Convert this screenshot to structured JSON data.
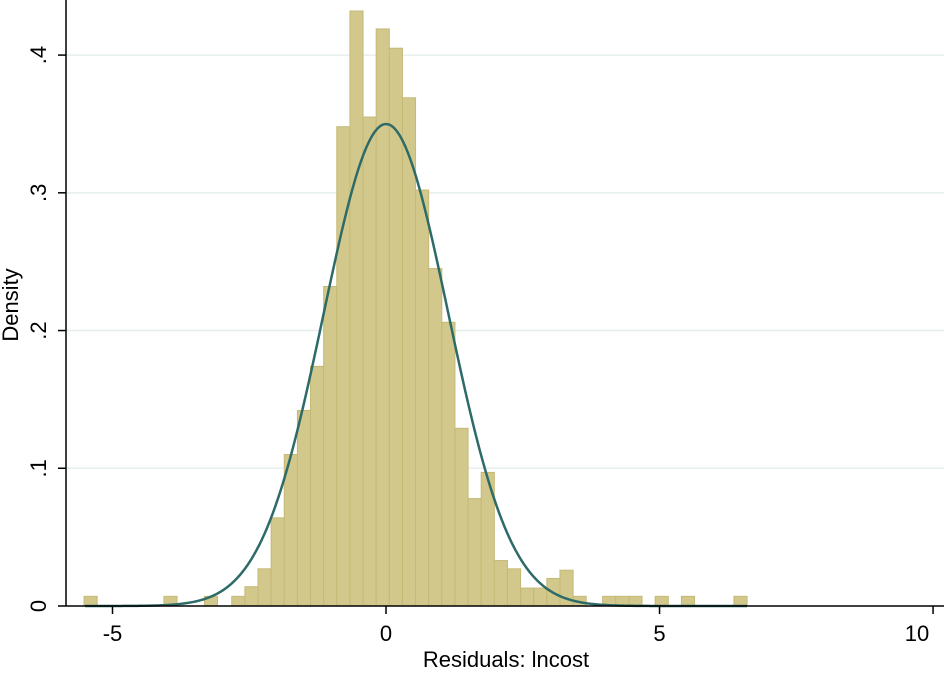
{
  "chart_data": {
    "type": "bar",
    "xlabel": "Residuals:  lncost",
    "ylabel": "Density",
    "xlim": [
      -5.85,
      10.2
    ],
    "ylim": [
      0,
      0.44
    ],
    "xticks": [
      {
        "value": -5,
        "label": "-5"
      },
      {
        "value": 0,
        "label": "0"
      },
      {
        "value": 5,
        "label": "5"
      },
      {
        "value": 10,
        "label": "10"
      }
    ],
    "yticks": [
      {
        "value": 0,
        "label": "0"
      },
      {
        "value": 0.1,
        "label": ".1"
      },
      {
        "value": 0.2,
        "label": ".2"
      },
      {
        "value": 0.3,
        "label": ".3"
      },
      {
        "value": 0.4,
        "label": ".4"
      }
    ],
    "grid": {
      "y": true,
      "x": false
    },
    "legend": "none",
    "colors": {
      "bars": "#d2c88c",
      "bar_edge": "#c5b976",
      "curve": "#2e6b68",
      "grid": "#e6eeee",
      "axis": "#000000"
    },
    "bin_width": 0.24,
    "histogram": {
      "name": "Density",
      "bins": [
        {
          "x0": -5.52,
          "x1": -5.28,
          "density": 0.007
        },
        {
          "x0": -4.06,
          "x1": -3.82,
          "density": 0.007
        },
        {
          "x0": -3.32,
          "x1": -3.08,
          "density": 0.007
        },
        {
          "x0": -2.82,
          "x1": -2.58,
          "density": 0.007
        },
        {
          "x0": -2.58,
          "x1": -2.34,
          "density": 0.014
        },
        {
          "x0": -2.34,
          "x1": -2.1,
          "density": 0.027
        },
        {
          "x0": -2.1,
          "x1": -1.86,
          "density": 0.064
        },
        {
          "x0": -1.86,
          "x1": -1.62,
          "density": 0.11
        },
        {
          "x0": -1.62,
          "x1": -1.38,
          "density": 0.142
        },
        {
          "x0": -1.38,
          "x1": -1.14,
          "density": 0.174
        },
        {
          "x0": -1.14,
          "x1": -0.9,
          "density": 0.232
        },
        {
          "x0": -0.9,
          "x1": -0.66,
          "density": 0.348
        },
        {
          "x0": -0.66,
          "x1": -0.42,
          "density": 0.432
        },
        {
          "x0": -0.42,
          "x1": -0.18,
          "density": 0.355
        },
        {
          "x0": -0.18,
          "x1": 0.06,
          "density": 0.419
        },
        {
          "x0": 0.06,
          "x1": 0.3,
          "density": 0.405
        },
        {
          "x0": 0.3,
          "x1": 0.54,
          "density": 0.369
        },
        {
          "x0": 0.54,
          "x1": 0.78,
          "density": 0.302
        },
        {
          "x0": 0.78,
          "x1": 1.02,
          "density": 0.245
        },
        {
          "x0": 1.02,
          "x1": 1.26,
          "density": 0.206
        },
        {
          "x0": 1.26,
          "x1": 1.5,
          "density": 0.129
        },
        {
          "x0": 1.5,
          "x1": 1.74,
          "density": 0.078
        },
        {
          "x0": 1.74,
          "x1": 1.98,
          "density": 0.097
        },
        {
          "x0": 1.98,
          "x1": 2.22,
          "density": 0.033
        },
        {
          "x0": 2.22,
          "x1": 2.46,
          "density": 0.027
        },
        {
          "x0": 2.46,
          "x1": 2.7,
          "density": 0.013
        },
        {
          "x0": 2.7,
          "x1": 2.94,
          "density": 0.013
        },
        {
          "x0": 2.94,
          "x1": 3.18,
          "density": 0.02
        },
        {
          "x0": 3.18,
          "x1": 3.42,
          "density": 0.026
        },
        {
          "x0": 3.42,
          "x1": 3.66,
          "density": 0.007
        },
        {
          "x0": 3.96,
          "x1": 4.2,
          "density": 0.007
        },
        {
          "x0": 4.2,
          "x1": 4.44,
          "density": 0.007
        },
        {
          "x0": 4.44,
          "x1": 4.68,
          "density": 0.007
        },
        {
          "x0": 4.92,
          "x1": 5.16,
          "density": 0.007
        },
        {
          "x0": 5.4,
          "x1": 5.64,
          "density": 0.007
        },
        {
          "x0": 6.36,
          "x1": 6.6,
          "density": 0.007
        }
      ]
    },
    "normal_curve": {
      "type": "line",
      "mean": 0.0,
      "sd": 1.14,
      "peak_density": 0.35
    }
  }
}
